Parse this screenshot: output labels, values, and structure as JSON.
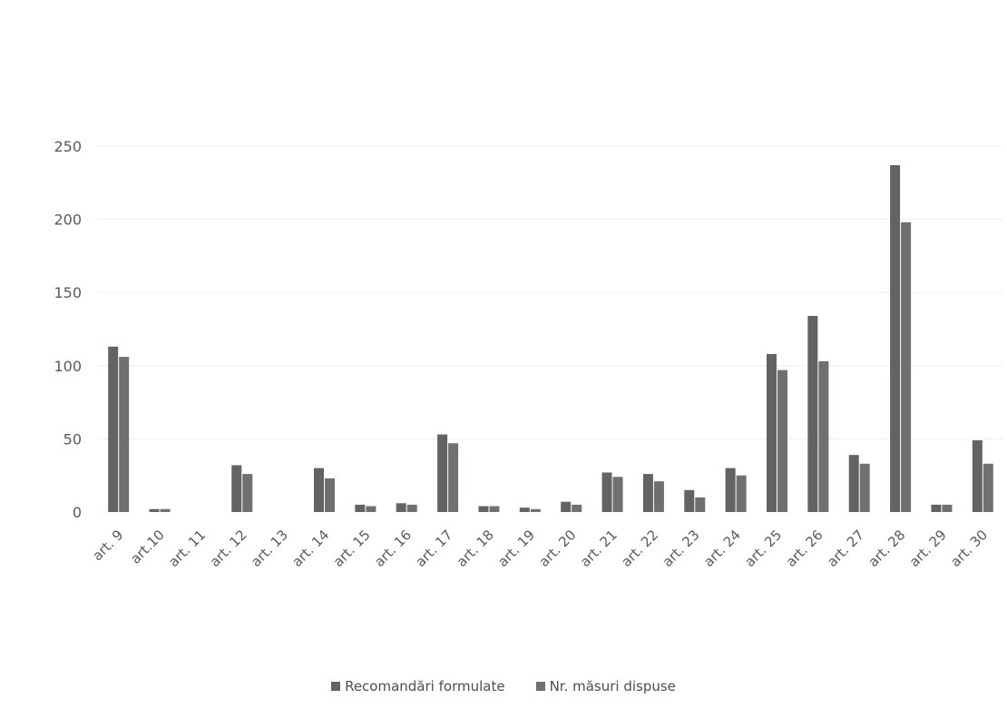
{
  "chart_data": {
    "type": "bar",
    "title": "",
    "xlabel": "",
    "ylabel": "",
    "ylim": [
      0,
      250
    ],
    "yticks": [
      0,
      50,
      100,
      150,
      200,
      250
    ],
    "grid": true,
    "legend_position": "bottom",
    "categories": [
      "art. 9",
      "art.10",
      "art. 11",
      "art. 12",
      "art. 13",
      "art. 14",
      "art. 15",
      "art. 16",
      "art. 17",
      "art. 18",
      "art. 19",
      "art. 20",
      "art. 21",
      "art. 22",
      "art. 23",
      "art. 24",
      "art. 25",
      "art. 26",
      "art. 27",
      "art. 28",
      "art. 29",
      "art. 30"
    ],
    "series": [
      {
        "name": "Recomandări formulate",
        "color": "#636363",
        "values": [
          113,
          2,
          0,
          32,
          0,
          30,
          5,
          6,
          53,
          4,
          3,
          7,
          27,
          26,
          15,
          30,
          108,
          134,
          39,
          237,
          5,
          49
        ]
      },
      {
        "name": "Nr. măsuri dispuse",
        "color": "#707070",
        "values": [
          106,
          2,
          0,
          26,
          0,
          23,
          4,
          5,
          47,
          4,
          2,
          5,
          24,
          21,
          10,
          25,
          97,
          103,
          33,
          198,
          5,
          33
        ]
      }
    ]
  }
}
